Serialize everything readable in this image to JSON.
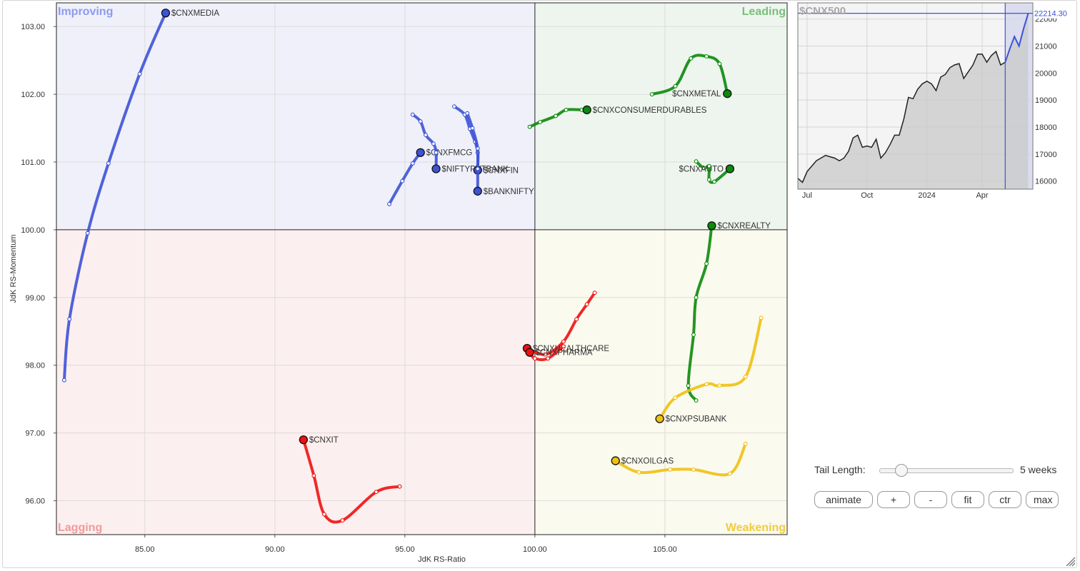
{
  "chart_data": [
    {
      "type": "scatter",
      "subtype": "relative-rotation-graph",
      "xlabel": "JdK RS-Ratio",
      "ylabel": "JdK RS-Momentum",
      "xlim": [
        81.6,
        109.7
      ],
      "ylim": [
        95.5,
        103.35
      ],
      "x_ticks": [
        85.0,
        90.0,
        95.0,
        100.0,
        105.0
      ],
      "y_ticks": [
        96.0,
        97.0,
        98.0,
        99.0,
        100.0,
        101.0,
        102.0,
        103.0
      ],
      "grid": true,
      "quadrants": [
        {
          "name": "Improving",
          "position": "top-left",
          "bg": "#eff0fa",
          "label_color": "#8d9bee"
        },
        {
          "name": "Leading",
          "position": "top-right",
          "bg": "#eef5ee",
          "label_color": "#79c07a"
        },
        {
          "name": "Lagging",
          "position": "bottom-left",
          "bg": "#fcefef",
          "label_color": "#f29a9a"
        },
        {
          "name": "Weakening",
          "position": "bottom-right",
          "bg": "#fbfaee",
          "label_color": "#f2cc3a"
        }
      ],
      "colors": {
        "blue": "#3d52d5",
        "green": "#0b8a0b",
        "red": "#ee1111",
        "yellow": "#f0c010"
      },
      "series": [
        {
          "name": "$CNXMEDIA",
          "color": "blue",
          "tail": [
            [
              81.9,
              97.78
            ],
            [
              82.1,
              98.68
            ],
            [
              82.8,
              99.95
            ],
            [
              83.6,
              100.98
            ],
            [
              84.8,
              102.3
            ],
            [
              85.8,
              103.2
            ]
          ],
          "label_side": "right"
        },
        {
          "name": "$CNXFMCG",
          "color": "blue",
          "tail": [
            [
              94.4,
              100.38
            ],
            [
              94.9,
              100.72
            ],
            [
              95.3,
              100.98
            ],
            [
              95.6,
              101.14
            ]
          ],
          "label_side": "right"
        },
        {
          "name": "$NIFTYPVTBANK",
          "color": "blue",
          "tail": [
            [
              95.3,
              101.7
            ],
            [
              95.6,
              101.6
            ],
            [
              95.8,
              101.4
            ],
            [
              96.1,
              101.27
            ],
            [
              96.2,
              101.14
            ],
            [
              96.2,
              100.9
            ]
          ],
          "label_side": "right"
        },
        {
          "name": "$CNXFIN",
          "color": "blue",
          "tail": [
            [
              96.9,
              101.82
            ],
            [
              97.3,
              101.7
            ],
            [
              97.5,
              101.49
            ],
            [
              97.7,
              101.3
            ],
            [
              97.8,
              101.14
            ],
            [
              97.8,
              100.88
            ]
          ],
          "label_side": "right"
        },
        {
          "name": "$BANKNIFTY",
          "color": "blue",
          "tail": [
            [
              97.4,
              101.72
            ],
            [
              97.6,
              101.5
            ],
            [
              97.8,
              101.2
            ],
            [
              97.8,
              100.9
            ],
            [
              97.8,
              100.57
            ]
          ],
          "label_side": "right"
        },
        {
          "name": "$CNXMETAL",
          "color": "green",
          "tail": [
            [
              104.5,
              102.0
            ],
            [
              105.4,
              102.12
            ],
            [
              106.0,
              102.53
            ],
            [
              106.6,
              102.56
            ],
            [
              107.1,
              102.45
            ],
            [
              107.4,
              102.01
            ]
          ],
          "label_side": "left"
        },
        {
          "name": "$CNXCONSUMERDURABLES",
          "color": "green",
          "tail": [
            [
              99.8,
              101.52
            ],
            [
              100.2,
              101.59
            ],
            [
              100.8,
              101.68
            ],
            [
              101.2,
              101.77
            ],
            [
              101.8,
              101.77
            ],
            [
              102.0,
              101.77
            ]
          ],
          "label_side": "right"
        },
        {
          "name": "$CNXAUTO",
          "color": "green",
          "tail": [
            [
              106.2,
              101.01
            ],
            [
              106.5,
              100.91
            ],
            [
              106.7,
              100.94
            ],
            [
              106.7,
              100.74
            ],
            [
              106.9,
              100.71
            ],
            [
              107.5,
              100.9
            ]
          ],
          "label_side": "left"
        },
        {
          "name": "$CNXREALTY",
          "color": "green",
          "tail": [
            [
              106.2,
              97.48
            ],
            [
              105.9,
              97.7
            ],
            [
              106.1,
              98.45
            ],
            [
              106.2,
              99.0
            ],
            [
              106.6,
              99.5
            ],
            [
              106.8,
              100.06
            ]
          ],
          "label_side": "right"
        },
        {
          "name": "$CNXHEALTHCARE",
          "color": "red",
          "tail": [
            [
              102.3,
              99.07
            ],
            [
              102.0,
              98.9
            ],
            [
              101.6,
              98.68
            ],
            [
              101.1,
              98.35
            ],
            [
              100.4,
              98.16
            ],
            [
              99.7,
              98.25
            ]
          ],
          "label_side": "right"
        },
        {
          "name": "$CNXPHARMA",
          "color": "red",
          "tail": [
            [
              101.1,
              98.28
            ],
            [
              100.5,
              98.1
            ],
            [
              100.0,
              98.1
            ],
            [
              99.8,
              98.19
            ]
          ],
          "label_side": "right"
        },
        {
          "name": "$CNXIT",
          "color": "red",
          "tail": [
            [
              94.8,
              96.21
            ],
            [
              93.9,
              96.13
            ],
            [
              92.6,
              95.71
            ],
            [
              91.9,
              95.8
            ],
            [
              91.5,
              96.37
            ],
            [
              91.1,
              96.9
            ]
          ],
          "label_side": "right"
        },
        {
          "name": "$CNXPSUBANK",
          "color": "yellow",
          "tail": [
            [
              108.7,
              98.7
            ],
            [
              108.1,
              97.83
            ],
            [
              107.1,
              97.7
            ],
            [
              106.6,
              97.72
            ],
            [
              105.4,
              97.52
            ],
            [
              104.8,
              97.21
            ]
          ],
          "label_side": "right"
        },
        {
          "name": "$CNXOILGAS",
          "color": "yellow",
          "tail": [
            [
              108.1,
              96.84
            ],
            [
              107.5,
              96.4
            ],
            [
              106.1,
              96.46
            ],
            [
              105.2,
              96.46
            ],
            [
              104.0,
              96.42
            ],
            [
              103.1,
              96.59
            ]
          ],
          "label_side": "right"
        }
      ]
    },
    {
      "type": "area",
      "title": "$CNX500",
      "last_value": "22214.30",
      "ylim": [
        15700,
        22600
      ],
      "y_ticks": [
        16000,
        17000,
        18000,
        19000,
        20000,
        21000,
        22000
      ],
      "x_ticks": [
        {
          "label": "Jul",
          "x": 2
        },
        {
          "label": "Oct",
          "x": 15
        },
        {
          "label": "2024",
          "x": 28
        },
        {
          "label": "Apr",
          "x": 40
        }
      ],
      "x_range": [
        0,
        51
      ],
      "highlight_start": 45,
      "values": [
        16100,
        15950,
        16350,
        16550,
        16750,
        16850,
        16950,
        16900,
        16850,
        16750,
        16850,
        17100,
        17600,
        17700,
        17250,
        17300,
        17250,
        17550,
        16850,
        17050,
        17350,
        17700,
        17700,
        18300,
        19100,
        19050,
        19400,
        19600,
        19700,
        19600,
        19350,
        19850,
        19950,
        20200,
        20300,
        20350,
        19800,
        20050,
        20300,
        20700,
        20700,
        20400,
        20650,
        20800,
        20300,
        20400,
        20900,
        21350,
        21000,
        21650,
        22214
      ]
    }
  ],
  "controls": {
    "tail_label": "Tail Length:",
    "tail_value": "5 weeks",
    "tail_fraction": 0.16,
    "buttons": {
      "animate": "animate",
      "plus": "+",
      "minus": "-",
      "fit": "fit",
      "ctr": "ctr",
      "max": "max"
    }
  }
}
